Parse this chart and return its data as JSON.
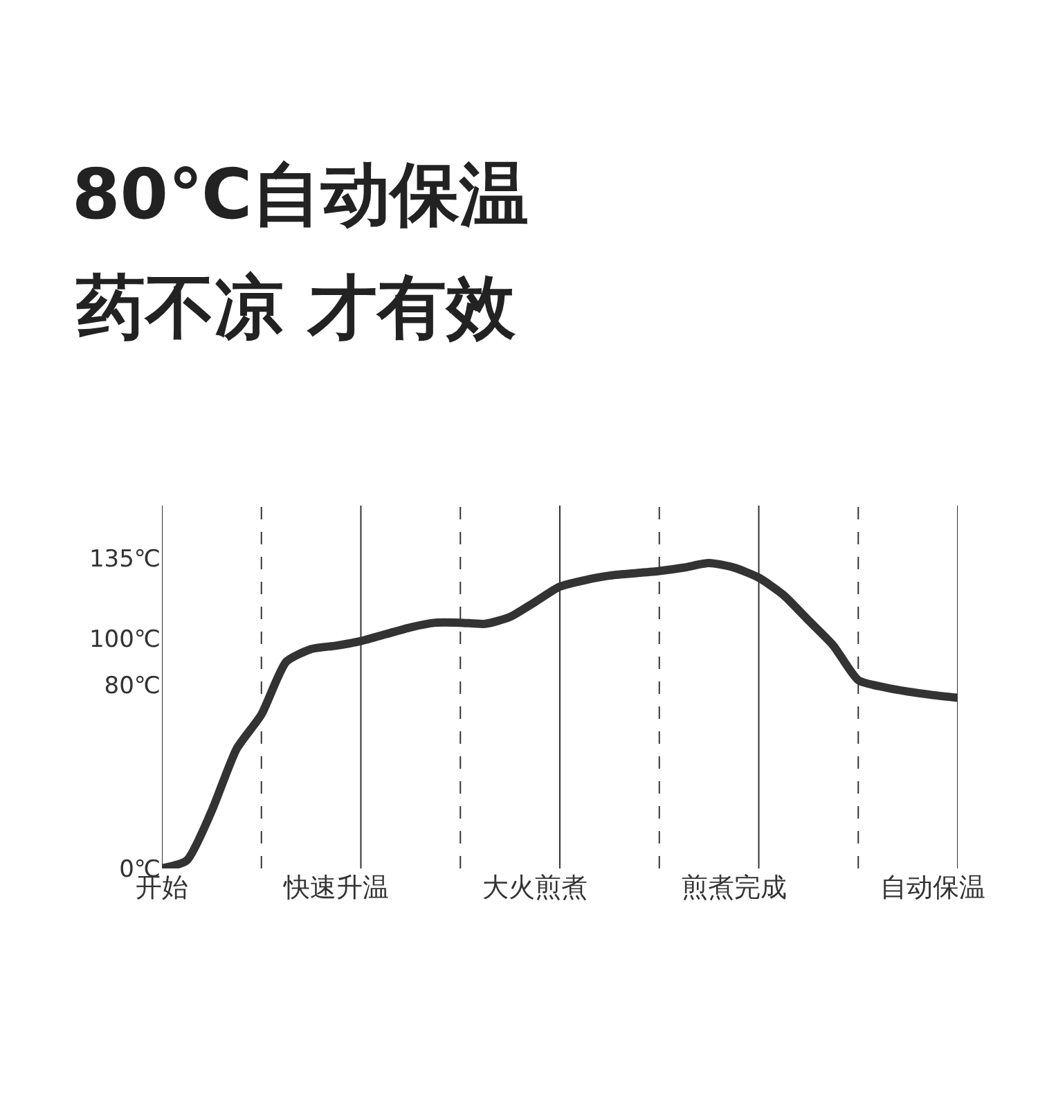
{
  "chart_data": {
    "type": "line",
    "title": "80℃自动保温",
    "subtitle": "药不凉 才有效",
    "categories": [
      "开始",
      null,
      null,
      null,
      null,
      null,
      null,
      "快速升温",
      null,
      null,
      null,
      null,
      null,
      null,
      null,
      "大火煎煮",
      null,
      null,
      null,
      null,
      null,
      null,
      null,
      "煎煮完成",
      null,
      null,
      null,
      null,
      null,
      null,
      null,
      "自动保温",
      null
    ],
    "series": [
      {
        "color": "#333333",
        "line_style": "solid",
        "values": [
          0,
          3.5,
          25,
          52,
          67,
          90,
          95.5,
          97,
          99,
          102,
          105,
          107,
          107,
          106.5,
          109.5,
          116,
          122.7,
          125.5,
          127.5,
          128.5,
          129.5,
          131,
          133,
          131,
          126.6,
          119,
          108,
          97,
          82,
          79,
          77,
          75.5,
          74.3
        ]
      }
    ],
    "ylim": [
      0,
      158
    ],
    "yticks": [
      {
        "value": 0,
        "label": "0℃"
      },
      {
        "value": 80,
        "label": "80℃"
      },
      {
        "value": 100,
        "label": "100℃"
      },
      {
        "value": 135,
        "label": "135℃"
      }
    ],
    "grid": "x",
    "marker": "none"
  }
}
